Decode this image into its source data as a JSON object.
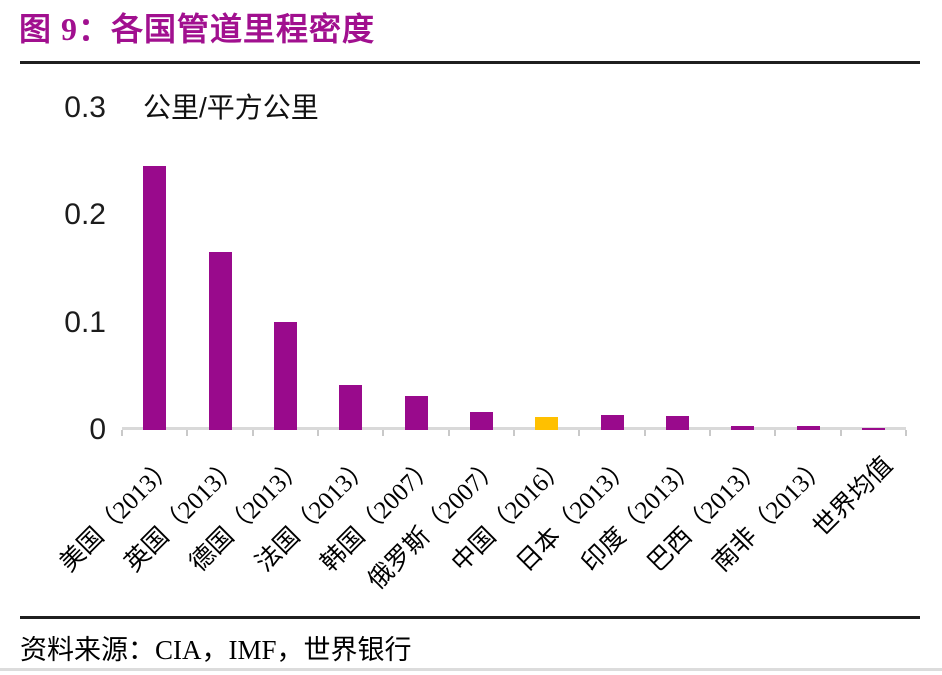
{
  "header": {
    "title": "图 9：各国管道里程密度"
  },
  "footer": {
    "source": "资料来源：CIA，IMF，世界银行"
  },
  "chart_data": {
    "type": "bar",
    "title": "各国管道里程密度",
    "ylabel": "公里/平方公里",
    "xlabel": "",
    "categories": [
      "美国（2013）",
      "英国（2013）",
      "德国（2013）",
      "法国（2013）",
      "韩国（2007）",
      "俄罗斯（2007）",
      "中国（2016）",
      "日本（2013）",
      "印度（2013）",
      "巴西（2013）",
      "南非（2013）",
      "世界均值"
    ],
    "values": [
      0.246,
      0.166,
      0.1,
      0.042,
      0.032,
      0.017,
      0.012,
      0.014,
      0.013,
      0.004,
      0.004,
      0.002
    ],
    "ylim": [
      0,
      0.3
    ],
    "yticks": [
      0,
      0.1,
      0.2,
      0.3
    ],
    "ytick_labels": [
      "0",
      "0.1",
      "0.2",
      "0.3"
    ],
    "grid": false,
    "legend": "none",
    "x_labels_rotation_deg": -45,
    "bar_color": "#990A8C",
    "highlight_color": "#FFC000",
    "highlight_index": 6,
    "highlight_category": "中国（2016）",
    "axis_color": "#D9D9D9",
    "title_color": "#A1108F"
  }
}
